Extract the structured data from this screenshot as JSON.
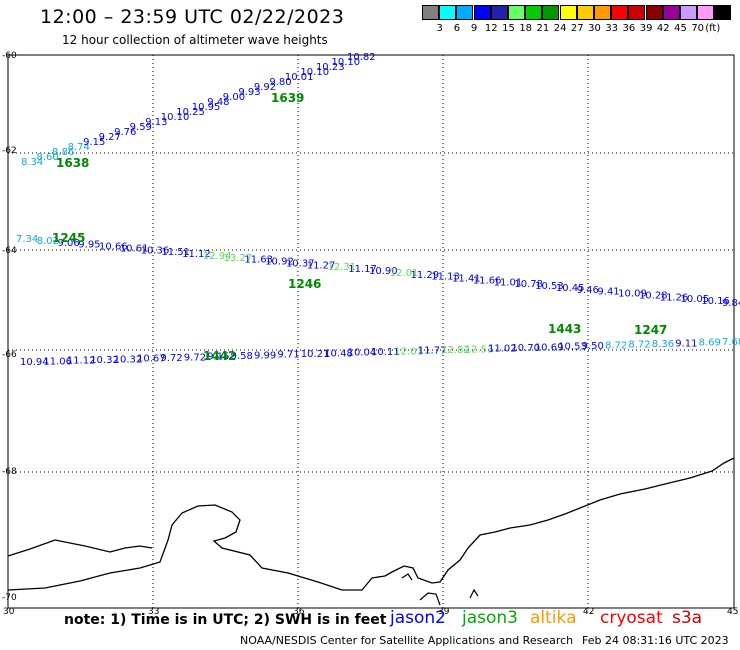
{
  "title": "12:00 – 23:59 UTC 02/22/2023",
  "subtitle": "12 hour collection of altimeter wave heights",
  "colorbar": {
    "labels": [
      "",
      "3",
      "6",
      "9",
      "12",
      "15",
      "18",
      "21",
      "24",
      "27",
      "30",
      "33",
      "36",
      "39",
      "42",
      "45",
      "70"
    ],
    "colors": [
      "#808080",
      "#00ffff",
      "#00aaff",
      "#0000ff",
      "#2222aa",
      "#66ff66",
      "#00cc00",
      "#009900",
      "#ffff00",
      "#ffcc00",
      "#ff9900",
      "#ff0000",
      "#cc0000",
      "#880000",
      "#990099",
      "#cc99ff",
      "#ff99ff",
      "#000000"
    ],
    "unit": "(ft)"
  },
  "axes": {
    "lat_labels": [
      "-60",
      "-62",
      "-64",
      "-66",
      "-68",
      "-70"
    ],
    "lon_labels": [
      "30",
      "33",
      "36",
      "39",
      "42",
      "45"
    ]
  },
  "tracks": {
    "track_a": {
      "values": [
        "8.34",
        "8.60",
        "8.86",
        "8.74",
        "9.15",
        "9.27",
        "9.76",
        "9.59",
        "9.13",
        "10.10",
        "10.25",
        "10.95",
        "9.48",
        "9.00",
        "9.93",
        "9.92",
        "9.80",
        "10.01",
        "10.10",
        "10.23",
        "10.10",
        "10.82"
      ],
      "time_labels": [
        "1638",
        "1639"
      ]
    },
    "track_b": {
      "values": [
        "7.34",
        "8.02",
        "9.06",
        "9.95",
        "10.66",
        "10.61",
        "10.36",
        "11.51",
        "11.12",
        "12.94",
        "13.27",
        "11.63",
        "10.92",
        "10.37",
        "11.27",
        "12.31",
        "11.17",
        "10.90",
        "12.01",
        "11.29",
        "11.13",
        "11.41",
        "11.66",
        "11.01",
        "10.78",
        "10.53",
        "10.45",
        "9.46",
        "9.41",
        "10.09",
        "10.28",
        "11.26",
        "10.05",
        "10.16",
        "9.84"
      ],
      "time_labels": [
        "1245",
        "1246"
      ]
    },
    "track_c": {
      "values": [
        "10.94",
        "11.06",
        "11.12",
        "10.32",
        "10.32",
        "10.67",
        "9.72",
        "9.72",
        "9.15",
        "9.58",
        "9.99",
        "9.71",
        "10.21",
        "10.48",
        "10.04",
        "10.11",
        "12.01",
        "11.77",
        "12.82",
        "12.53",
        "11.02",
        "10.70",
        "10.69",
        "10.53",
        "9.50",
        "8.72",
        "8.72",
        "8.36",
        "9.11",
        "8.69",
        "7.68"
      ],
      "time_labels": [
        "1442",
        "1443",
        "1247"
      ]
    }
  },
  "notes": "note:  1) Time is in UTC;  2) SWH is in feet",
  "satellites": [
    {
      "name": "jason2",
      "color": "#0000ff"
    },
    {
      "name": "jason3",
      "color": "#00aa00"
    },
    {
      "name": "altika",
      "color": "#ff9900"
    },
    {
      "name": "cryosat",
      "color": "#ff0000"
    },
    {
      "name": "s3a",
      "color": "#cc0000"
    }
  ],
  "footer": "NOAA/NESDIS Center for Satellite Applications and Research",
  "timestamp": "Feb 24 08:31:16 UTC 2023"
}
